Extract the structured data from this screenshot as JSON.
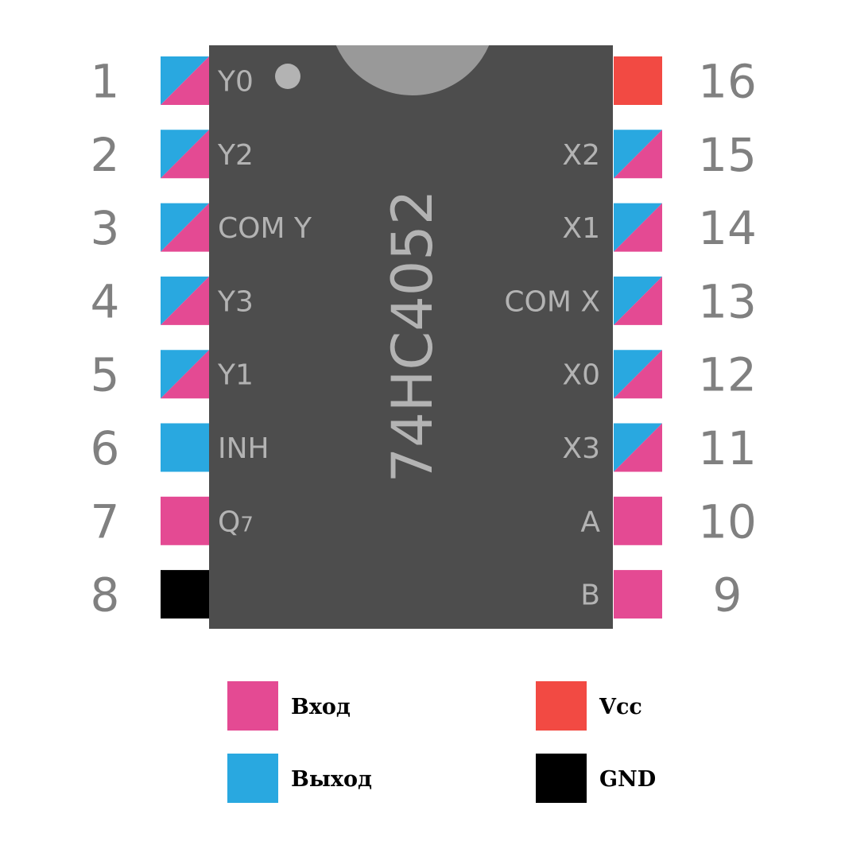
{
  "chip_name": "74HC4052",
  "colors": {
    "input": "#e44a93",
    "output": "#29a8e0",
    "vcc": "#f24a43",
    "gnd": "#000000",
    "body": "#4d4d4d",
    "notch": "#999999",
    "text": "#b3b3b3",
    "number": "#808080"
  },
  "left_pins": [
    {
      "number": "1",
      "label": "Y0",
      "type": "io"
    },
    {
      "number": "2",
      "label": "Y2",
      "type": "io"
    },
    {
      "number": "3",
      "label": "COM Y",
      "type": "io"
    },
    {
      "number": "4",
      "label": "Y3",
      "type": "io"
    },
    {
      "number": "5",
      "label": "Y1",
      "type": "io"
    },
    {
      "number": "6",
      "label": "INH",
      "type": "output"
    },
    {
      "number": "7",
      "label": "Q",
      "label_sub": "7",
      "type": "input"
    },
    {
      "number": "8",
      "label": "",
      "type": "gnd"
    }
  ],
  "right_pins": [
    {
      "number": "16",
      "label": "",
      "type": "vcc"
    },
    {
      "number": "15",
      "label": "X2",
      "type": "io"
    },
    {
      "number": "14",
      "label": "X1",
      "type": "io"
    },
    {
      "number": "13",
      "label": "COM X",
      "type": "io"
    },
    {
      "number": "12",
      "label": "X0",
      "type": "io"
    },
    {
      "number": "11",
      "label": "X3",
      "type": "io"
    },
    {
      "number": "10",
      "label": "A",
      "type": "input"
    },
    {
      "number": "9",
      "label": "B",
      "type": "input"
    }
  ],
  "legend": [
    {
      "label": "Вход",
      "type": "input"
    },
    {
      "label": "Vcc",
      "type": "vcc"
    },
    {
      "label": "Выход",
      "type": "output"
    },
    {
      "label": "GND",
      "type": "gnd"
    }
  ]
}
